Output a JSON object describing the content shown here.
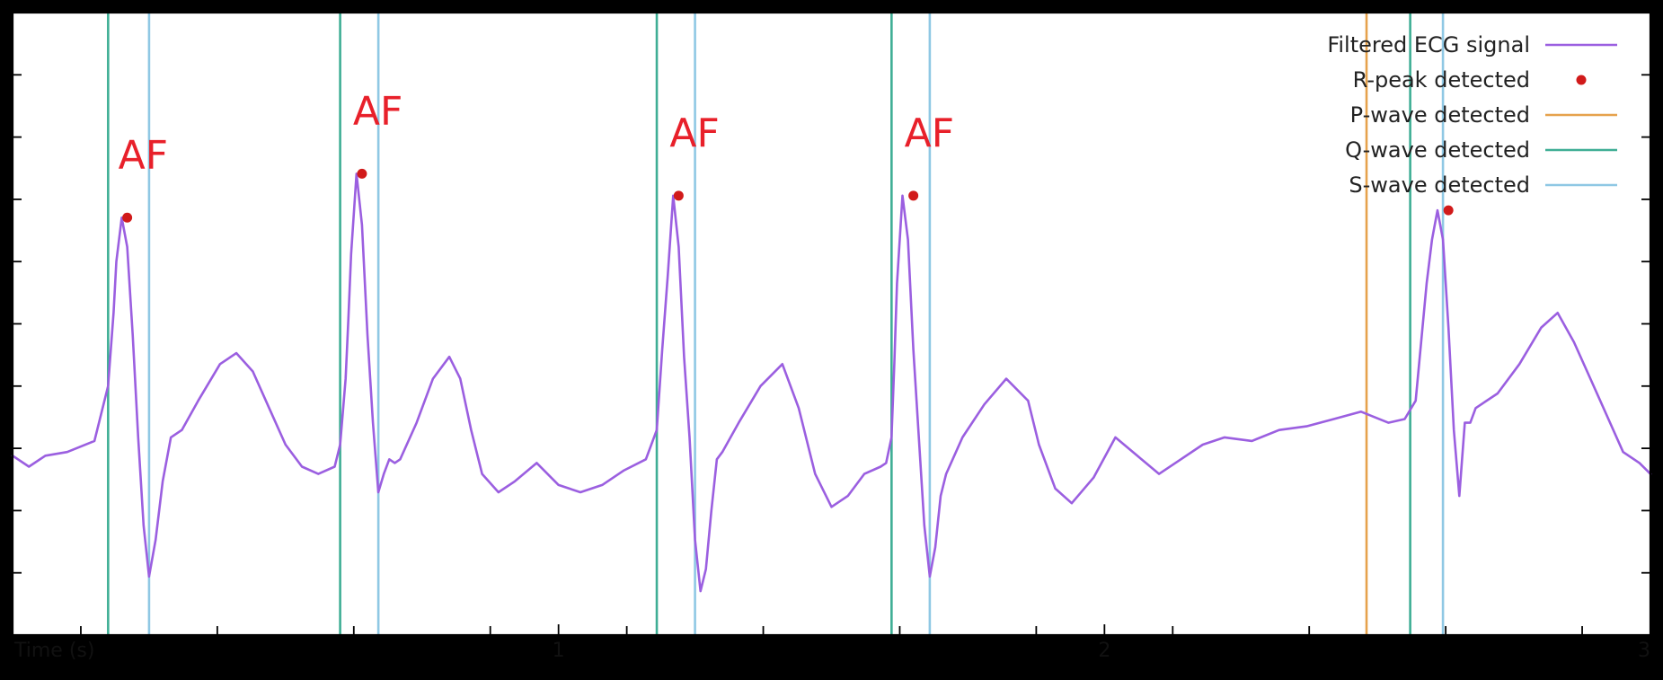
{
  "chart_data": {
    "type": "line",
    "xlabel": "Time (s)",
    "ylabel": "",
    "xlim": [
      0,
      3
    ],
    "ylim": [
      -2.5,
      6
    ],
    "x_ticks": [
      1,
      2,
      3
    ],
    "y_tick_count_hint": 9,
    "grid": false,
    "legend_position": "top-right",
    "colors": {
      "signal": "#9b5fe0",
      "r_peak": "#d11a1a",
      "p_wave": "#e6a24c",
      "q_wave": "#3fae95",
      "s_wave": "#8fc8e4",
      "af_label": "#e8202a"
    },
    "legend": [
      {
        "label": "Filtered ECG signal",
        "kind": "line",
        "color_key": "signal"
      },
      {
        "label": "R-peak detected",
        "kind": "point",
        "color_key": "r_peak"
      },
      {
        "label": "P-wave detected",
        "kind": "line",
        "color_key": "p_wave"
      },
      {
        "label": "Q-wave detected",
        "kind": "line",
        "color_key": "q_wave"
      },
      {
        "label": "S-wave detected",
        "kind": "line",
        "color_key": "s_wave"
      }
    ],
    "series": [
      {
        "name": "Filtered ECG signal",
        "x": [
          0,
          0.03,
          0.06,
          0.1,
          0.15,
          0.175,
          0.185,
          0.19,
          0.2,
          0.21,
          0.22,
          0.23,
          0.24,
          0.25,
          0.262,
          0.275,
          0.29,
          0.31,
          0.34,
          0.38,
          0.41,
          0.44,
          0.47,
          0.5,
          0.53,
          0.56,
          0.59,
          0.6,
          0.61,
          0.615,
          0.62,
          0.63,
          0.64,
          0.65,
          0.66,
          0.67,
          0.68,
          0.69,
          0.7,
          0.71,
          0.74,
          0.77,
          0.8,
          0.82,
          0.84,
          0.86,
          0.89,
          0.92,
          0.96,
          1.0,
          1.04,
          1.08,
          1.12,
          1.16,
          1.18,
          1.19,
          1.2,
          1.21,
          1.22,
          1.23,
          1.24,
          1.25,
          1.26,
          1.27,
          1.28,
          1.29,
          1.3,
          1.33,
          1.37,
          1.41,
          1.44,
          1.47,
          1.5,
          1.53,
          1.56,
          1.59,
          1.6,
          1.61,
          1.615,
          1.62,
          1.63,
          1.64,
          1.65,
          1.66,
          1.67,
          1.68,
          1.69,
          1.7,
          1.71,
          1.74,
          1.78,
          1.82,
          1.86,
          1.88,
          1.91,
          1.94,
          1.98,
          2.02,
          2.06,
          2.1,
          2.14,
          2.18,
          2.22,
          2.27,
          2.32,
          2.37,
          2.42,
          2.47,
          2.52,
          2.55,
          2.57,
          2.58,
          2.59,
          2.6,
          2.61,
          2.62,
          2.63,
          2.64,
          2.65,
          2.66,
          2.67,
          2.68,
          2.72,
          2.76,
          2.8,
          2.83,
          2.86,
          2.89,
          2.92,
          2.95,
          2.98,
          3.0
        ],
        "y": [
          -0.05,
          -0.2,
          -0.05,
          0,
          0.15,
          0.9,
          1.9,
          2.6,
          3.2,
          2.8,
          1.6,
          0.2,
          -1.0,
          -1.7,
          -1.2,
          -0.4,
          0.2,
          0.3,
          0.7,
          1.2,
          1.35,
          1.1,
          0.6,
          0.1,
          -0.2,
          -0.3,
          -0.2,
          0.1,
          1.0,
          1.8,
          2.7,
          3.8,
          3.1,
          1.6,
          0.4,
          -0.55,
          -0.3,
          -0.1,
          -0.15,
          -0.1,
          0.4,
          1.0,
          1.3,
          1.0,
          0.3,
          -0.3,
          -0.55,
          -0.4,
          -0.15,
          -0.45,
          -0.55,
          -0.45,
          -0.25,
          -0.1,
          0.3,
          1.4,
          2.4,
          3.5,
          2.8,
          1.3,
          0.2,
          -1.2,
          -1.9,
          -1.6,
          -0.8,
          -0.1,
          0.0,
          0.4,
          0.9,
          1.2,
          0.6,
          -0.3,
          -0.75,
          -0.6,
          -0.3,
          -0.2,
          -0.15,
          0.2,
          1.2,
          2.3,
          3.5,
          2.9,
          1.4,
          0.2,
          -1.0,
          -1.7,
          -1.3,
          -0.6,
          -0.3,
          0.2,
          0.65,
          1.0,
          0.7,
          0.1,
          -0.5,
          -0.7,
          -0.35,
          0.2,
          -0.05,
          -0.3,
          -0.1,
          0.1,
          0.2,
          0.15,
          0.3,
          0.35,
          0.45,
          0.55,
          0.4,
          0.45,
          0.7,
          1.5,
          2.3,
          2.9,
          3.3,
          2.9,
          1.7,
          0.3,
          -0.6,
          0.4,
          0.4,
          0.6,
          0.8,
          1.2,
          1.7,
          1.9,
          1.5,
          1.0,
          0.5,
          0.0,
          -0.15,
          -0.3
        ]
      }
    ],
    "r_peaks": [
      {
        "x": 0.21,
        "y": 3.2,
        "label": "AF"
      },
      {
        "x": 0.64,
        "y": 3.8,
        "label": "AF"
      },
      {
        "x": 1.22,
        "y": 3.5,
        "label": "AF"
      },
      {
        "x": 1.65,
        "y": 3.5,
        "label": "AF"
      },
      {
        "x": 2.63,
        "y": 3.3,
        "label": ""
      }
    ],
    "q_waves": [
      0.175,
      0.6,
      1.18,
      1.61,
      2.56
    ],
    "s_waves": [
      0.25,
      0.67,
      1.25,
      1.68,
      2.62
    ],
    "p_waves": [
      2.48
    ]
  }
}
